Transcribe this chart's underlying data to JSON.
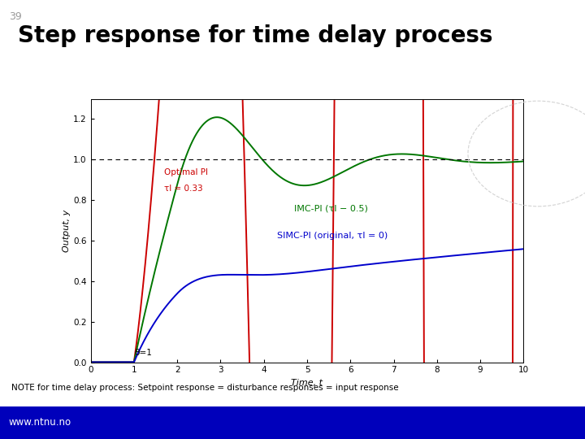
{
  "title": "Step response for time delay process",
  "slide_number": "39",
  "xlabel": "Time, t",
  "ylabel": "Output, y",
  "xlim": [
    0,
    10
  ],
  "ylim": [
    0,
    1.3
  ],
  "xticks": [
    0,
    1,
    2,
    3,
    4,
    5,
    6,
    7,
    8,
    9,
    10
  ],
  "yticks": [
    0,
    0.2,
    0.4,
    0.6,
    0.8,
    1.0,
    1.2
  ],
  "note_text": "NOTE for time delay process: Setpoint response = disturbance responses = input response",
  "footer_text": "www.ntnu.no",
  "footer_bg": "#0000BB",
  "annotation_theta": "θ=1",
  "label_optimal": "Optimal PI",
  "label_optimal_sub": "τI = 0.33",
  "label_imc": "IMC-PI (τI − 0.5)",
  "label_simc": "SIMC-PI (original, τI = 0)",
  "color_optimal": "#CC0000",
  "color_imc": "#007700",
  "color_simc": "#0000CC",
  "background_color": "#FFFFFF",
  "title_color": "#000000",
  "slide_num_color": "#999999"
}
